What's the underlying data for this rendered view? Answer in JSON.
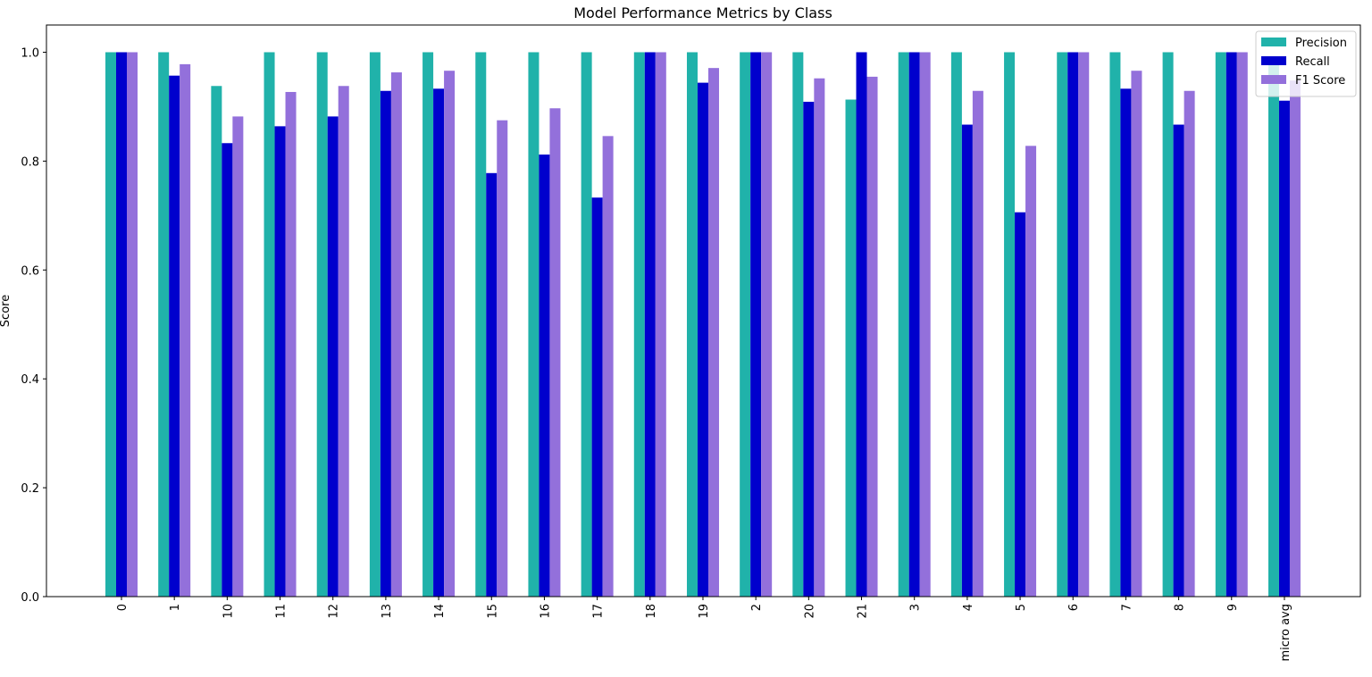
{
  "chart_data": {
    "type": "bar",
    "title": "Model Performance Metrics by Class",
    "xlabel": "",
    "ylabel": "Score",
    "ylim": [
      0,
      1.05
    ],
    "yticks": [
      "0.0",
      "0.2",
      "0.4",
      "0.6",
      "0.8",
      "1.0"
    ],
    "grid": false,
    "legend_position": "top-right",
    "categories": [
      "0",
      "1",
      "10",
      "11",
      "12",
      "13",
      "14",
      "15",
      "16",
      "17",
      "18",
      "19",
      "2",
      "20",
      "21",
      "3",
      "4",
      "5",
      "6",
      "7",
      "8",
      "9",
      "micro avg"
    ],
    "series": [
      {
        "name": "Precision",
        "color": "#20b2aa",
        "values": [
          1.0,
          1.0,
          0.938,
          1.0,
          1.0,
          1.0,
          1.0,
          1.0,
          1.0,
          1.0,
          1.0,
          1.0,
          1.0,
          1.0,
          0.913,
          1.0,
          1.0,
          1.0,
          1.0,
          1.0,
          1.0,
          1.0,
          0.99
        ]
      },
      {
        "name": "Recall",
        "color": "#0000cd",
        "values": [
          1.0,
          0.957,
          0.833,
          0.864,
          0.882,
          0.929,
          0.933,
          0.778,
          0.812,
          0.733,
          1.0,
          0.944,
          1.0,
          0.909,
          1.0,
          1.0,
          0.867,
          0.706,
          1.0,
          0.933,
          0.867,
          1.0,
          0.911
        ]
      },
      {
        "name": "F1 Score",
        "color": "#9370db",
        "values": [
          1.0,
          0.978,
          0.882,
          0.927,
          0.938,
          0.963,
          0.966,
          0.875,
          0.897,
          0.846,
          1.0,
          0.971,
          1.0,
          0.952,
          0.955,
          1.0,
          0.929,
          0.828,
          1.0,
          0.966,
          0.929,
          1.0,
          0.948
        ]
      }
    ]
  }
}
